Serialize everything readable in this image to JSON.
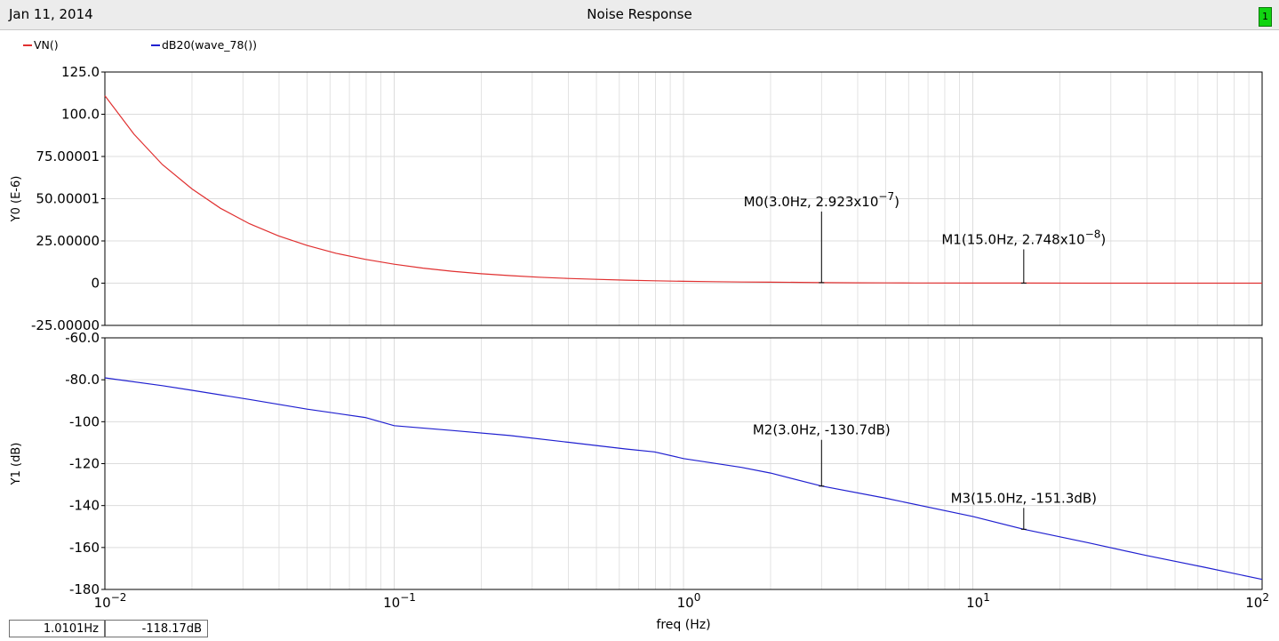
{
  "header": {
    "date": "Jan 11, 2014",
    "title": "Noise Response",
    "page_badge": "1"
  },
  "legend": [
    {
      "label": "VN()",
      "color": "#e03030"
    },
    {
      "label": "dB20(wave_78())",
      "color": "#2020d0"
    }
  ],
  "readout": {
    "x_value": "1.0101Hz",
    "y_value": "-118.17dB"
  },
  "colors": {
    "grid": "#dcdcdc",
    "panel_border": "#000000",
    "marker": "#000000"
  },
  "chart_data": [
    {
      "type": "line",
      "xscale": "log",
      "xlim": [
        0.01,
        100
      ],
      "ylabel": "Y0 (E-6)",
      "ylim": [
        -25,
        125
      ],
      "yticks": [
        {
          "value": -25,
          "label": "-25.00000"
        },
        {
          "value": 0,
          "label": "0"
        },
        {
          "value": 25,
          "label": "25.00000"
        },
        {
          "value": 50,
          "label": "50.00001"
        },
        {
          "value": 75,
          "label": "75.00001"
        },
        {
          "value": 100,
          "label": "100.0"
        },
        {
          "value": 125,
          "label": "125.0"
        }
      ],
      "series": [
        {
          "name": "VN()",
          "color": "#e03030",
          "x": [
            0.01,
            0.0126,
            0.0158,
            0.02,
            0.0251,
            0.0316,
            0.0398,
            0.05,
            0.063,
            0.0794,
            0.1,
            0.1259,
            0.1585,
            0.1995,
            0.2512,
            0.3162,
            0.3981,
            0.5012,
            0.631,
            0.7943,
            1.0,
            1.2589,
            1.5849,
            1.9953,
            2.5119,
            3.0,
            3.9811,
            5.0119,
            6.3096,
            10.0,
            15.0,
            25.119,
            39.811,
            63.096,
            100.0
          ],
          "y": [
            111.0,
            88.2,
            70.2,
            55.8,
            44.3,
            35.2,
            28.0,
            22.3,
            17.7,
            14.1,
            11.2,
            8.9,
            7.05,
            5.6,
            4.45,
            3.55,
            2.8,
            2.25,
            1.78,
            1.41,
            1.12,
            0.89,
            0.7,
            0.56,
            0.45,
            0.29,
            0.2,
            0.15,
            0.11,
            0.06,
            0.0275,
            0.012,
            0.006,
            0.003,
            0.0015
          ]
        }
      ],
      "markers": [
        {
          "label": "M0(3.0Hz, 2.923x10",
          "exp": "−7",
          "tail": ")",
          "x": 3.0,
          "y": 0.2923
        },
        {
          "label": "M1(15.0Hz, 2.748x10",
          "exp": "−8",
          "tail": ")",
          "x": 15.0,
          "y": 0.02748
        }
      ]
    },
    {
      "type": "line",
      "xscale": "log",
      "xlim": [
        0.01,
        100
      ],
      "xlabel": "freq (Hz)",
      "xticks": [
        {
          "value": 0.01,
          "base": "10",
          "exp": "−2"
        },
        {
          "value": 0.1,
          "base": "10",
          "exp": "−1"
        },
        {
          "value": 1,
          "base": "10",
          "exp": "0"
        },
        {
          "value": 10,
          "base": "10",
          "exp": "1"
        },
        {
          "value": 100,
          "base": "10",
          "exp": "2"
        }
      ],
      "ylabel": "Y1 (dB)",
      "ylim": [
        -180,
        -60
      ],
      "yticks": [
        {
          "value": -180,
          "label": "-180"
        },
        {
          "value": -160,
          "label": "-160"
        },
        {
          "value": -140,
          "label": "-140"
        },
        {
          "value": -120,
          "label": "-120"
        },
        {
          "value": -100,
          "label": "-100"
        },
        {
          "value": -80,
          "label": "-80.0"
        },
        {
          "value": -60,
          "label": "-60.0"
        }
      ],
      "series": [
        {
          "name": "dB20(wave_78())",
          "color": "#2020d0",
          "x": [
            0.01,
            0.0158,
            0.02,
            0.0316,
            0.05,
            0.0794,
            0.1,
            0.1585,
            0.2512,
            0.3981,
            0.631,
            0.7943,
            1.0,
            1.5849,
            2.0,
            3.0,
            5.0,
            10.0,
            15.0,
            25.119,
            39.811,
            63.096,
            100.0
          ],
          "y": [
            -79.1,
            -82.8,
            -85.0,
            -89.4,
            -94.0,
            -98.0,
            -101.9,
            -104.2,
            -106.6,
            -109.8,
            -113.0,
            -114.4,
            -117.6,
            -121.8,
            -124.5,
            -130.7,
            -136.5,
            -145.2,
            -151.3,
            -157.8,
            -163.8,
            -169.4,
            -175.2
          ]
        }
      ],
      "markers": [
        {
          "label": "M2(3.0Hz, -130.7dB)",
          "x": 3.0,
          "y": -130.7
        },
        {
          "label": "M3(15.0Hz, -151.3dB)",
          "x": 15.0,
          "y": -151.3
        }
      ]
    }
  ]
}
